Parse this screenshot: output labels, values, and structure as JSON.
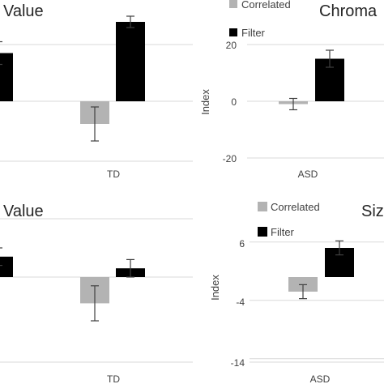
{
  "chart_data": [
    {
      "type": "bar",
      "title": "Value",
      "categories": [
        "",
        "TD"
      ],
      "series": [
        {
          "name": "Correlated",
          "values": [
            null,
            -8
          ],
          "errors": [
            null,
            6
          ],
          "color": "#b3b3b3"
        },
        {
          "name": "Filter",
          "values": [
            17,
            28
          ],
          "errors": [
            4,
            2
          ],
          "color": "#000000"
        }
      ],
      "ylabel": "",
      "ylim": [
        -20,
        30
      ],
      "grid": true
    },
    {
      "type": "bar",
      "title": "Chroma",
      "categories": [
        "ASD"
      ],
      "series": [
        {
          "name": "Correlated",
          "values": [
            -1
          ],
          "errors": [
            2
          ],
          "color": "#b3b3b3"
        },
        {
          "name": "Filter",
          "values": [
            15
          ],
          "errors": [
            3
          ],
          "color": "#000000"
        }
      ],
      "ylabel": "Index",
      "yticks": [
        20,
        0,
        -20
      ],
      "ylim": [
        -20,
        30
      ],
      "grid": true,
      "legend": [
        "Correlated",
        "Filter"
      ],
      "legend_position": "top-left"
    },
    {
      "type": "bar",
      "title": "Value",
      "categories": [
        "",
        "TD"
      ],
      "series": [
        {
          "name": "Correlated",
          "values": [
            null,
            -4.5
          ],
          "errors": [
            null,
            3
          ],
          "color": "#b3b3b3"
        },
        {
          "name": "Filter",
          "values": [
            3.5,
            1.5
          ],
          "errors": [
            1.5,
            1.5
          ],
          "color": "#000000"
        }
      ],
      "ylabel": "",
      "ylim": [
        -14,
        10
      ],
      "grid": true
    },
    {
      "type": "bar",
      "title": "Siz",
      "categories": [
        "ASD"
      ],
      "series": [
        {
          "name": "Correlated",
          "values": [
            -2.5
          ],
          "errors": [
            1.2
          ],
          "color": "#b3b3b3"
        },
        {
          "name": "Filter",
          "values": [
            5
          ],
          "errors": [
            1.2
          ],
          "color": "#000000"
        }
      ],
      "ylabel": "Index",
      "yticks": [
        6,
        -4,
        -14
      ],
      "ylim": [
        -14,
        10
      ],
      "grid": true,
      "legend": [
        "Correlated",
        "Filter"
      ],
      "legend_position": "top-left"
    }
  ]
}
